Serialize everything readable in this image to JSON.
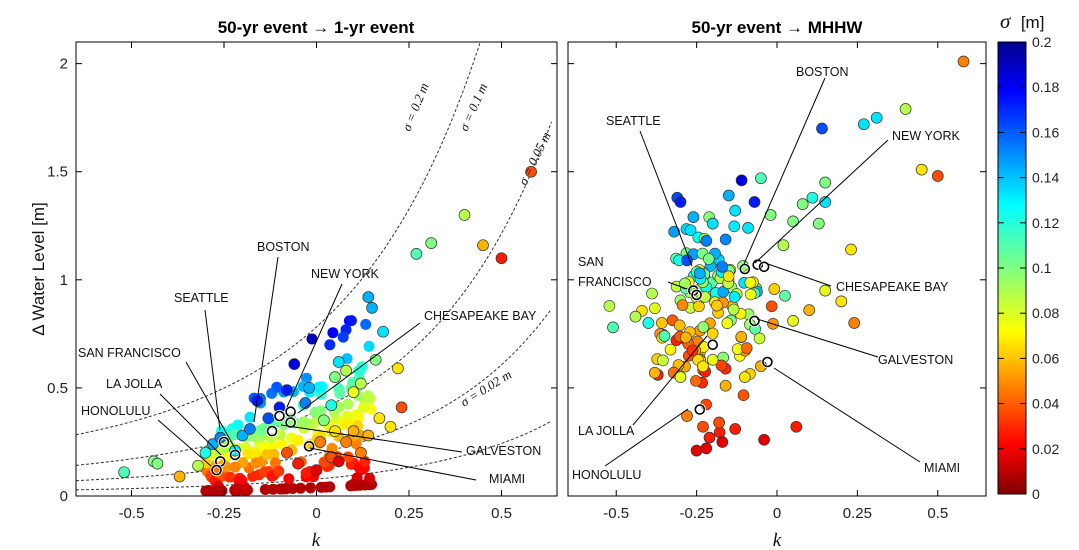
{
  "colors": {
    "frame": "#000000",
    "curve": "#333333",
    "marker_edge": "#333333",
    "city_marker_edge": "#000000"
  },
  "colorbar": {
    "label_symbol": "σ",
    "label_unit": "[m]",
    "min": 0,
    "max": 0.2,
    "ticks": [
      "0.2",
      "0.18",
      "0.16",
      "0.14",
      "0.12",
      "0.1",
      "0.08",
      "0.06",
      "0.04",
      "0.02",
      "0"
    ]
  },
  "chart_data": [
    {
      "type": "scatter",
      "title": "50-yr event → 1-yr event",
      "xlabel": "k",
      "ylabel": "Δ Water Level [m]",
      "xlim": [
        -0.65,
        0.65
      ],
      "ylim": [
        0,
        2.1
      ],
      "xticks": [
        -0.5,
        -0.25,
        0,
        0.25,
        0.5
      ],
      "xtick_labels": [
        "-0.5",
        "-0.25",
        "0",
        "0.25",
        "0.5"
      ],
      "yticks": [
        0.5,
        1,
        1.5,
        2
      ],
      "ytick_labels": [
        "0.5",
        "1",
        "1.5",
        "2"
      ],
      "reference_curves": [
        {
          "sigma": 0.2,
          "label": "σ = 0.2 m"
        },
        {
          "sigma": 0.1,
          "label": "σ = 0.1 m"
        },
        {
          "sigma": 0.05,
          "label": "σ = 0.05 m"
        },
        {
          "sigma": 0.02,
          "label": "σ = 0.02 m"
        }
      ],
      "points": [
        [
          -0.52,
          0.11,
          0.11
        ],
        [
          -0.44,
          0.16,
          0.1
        ],
        [
          -0.43,
          0.15,
          0.1
        ],
        [
          -0.37,
          0.09,
          0.06
        ],
        [
          -0.32,
          0.14,
          0.09
        ],
        [
          -0.3,
          0.2,
          0.12
        ],
        [
          -0.28,
          0.24,
          0.14
        ],
        [
          -0.26,
          0.27,
          0.15
        ],
        [
          -0.22,
          0.21,
          0.13
        ],
        [
          -0.2,
          0.28,
          0.14
        ],
        [
          -0.18,
          0.31,
          0.15
        ],
        [
          -0.16,
          0.44,
          0.17
        ],
        [
          -0.13,
          0.36,
          0.16
        ],
        [
          -0.1,
          0.41,
          0.17
        ],
        [
          -0.08,
          0.49,
          0.17
        ],
        [
          -0.06,
          0.61,
          0.18
        ],
        [
          -0.03,
          0.43,
          0.15
        ],
        [
          -0.02,
          0.5,
          0.14
        ],
        [
          0.02,
          0.35,
          0.1
        ],
        [
          0.04,
          0.42,
          0.12
        ],
        [
          0.05,
          0.55,
          0.1
        ],
        [
          0.06,
          0.62,
          0.13
        ],
        [
          0.08,
          0.58,
          0.09
        ],
        [
          0.1,
          0.48,
          0.08
        ],
        [
          0.12,
          0.52,
          0.09
        ],
        [
          0.14,
          0.92,
          0.14
        ],
        [
          0.15,
          0.87,
          0.14
        ],
        [
          0.16,
          0.63,
          0.1
        ],
        [
          0.18,
          0.76,
          0.13
        ],
        [
          0.22,
          0.59,
          0.07
        ],
        [
          0.23,
          0.41,
          0.04
        ],
        [
          0.27,
          1.12,
          0.11
        ],
        [
          0.31,
          1.17,
          0.1
        ],
        [
          0.4,
          1.3,
          0.09
        ],
        [
          0.45,
          1.16,
          0.06
        ],
        [
          0.5,
          1.1,
          0.03
        ],
        [
          0.58,
          1.5,
          0.04
        ],
        [
          0.2,
          0.32,
          0.07
        ],
        [
          0.17,
          0.36,
          0.07
        ],
        [
          0.1,
          0.3,
          0.06
        ],
        [
          0.05,
          0.3,
          0.07
        ],
        [
          0.08,
          0.25,
          0.05
        ],
        [
          0.04,
          0.18,
          0.04
        ],
        [
          0.0,
          0.12,
          0.02
        ],
        [
          -0.05,
          0.15,
          0.03
        ],
        [
          0.01,
          0.25,
          0.05
        ],
        [
          -0.08,
          0.2,
          0.04
        ],
        [
          0.06,
          0.16,
          0.02
        ],
        [
          0.12,
          0.2,
          0.05
        ],
        [
          0.14,
          0.28,
          0.06
        ]
      ],
      "band_density": 220,
      "cities": [
        {
          "name": "SEATTLE",
          "k": -0.25,
          "y": 0.25
        },
        {
          "name": "SAN FRANCISCO",
          "k": -0.22,
          "y": 0.19
        },
        {
          "name": "LA JOLLA",
          "k": -0.26,
          "y": 0.16
        },
        {
          "name": "HONOLULU",
          "k": -0.27,
          "y": 0.12
        },
        {
          "name": "BOSTON",
          "k": -0.1,
          "y": 0.37
        },
        {
          "name": "NEW YORK",
          "k": -0.07,
          "y": 0.39
        },
        {
          "name": "CHESAPEAKE BAY",
          "k": -0.07,
          "y": 0.34
        },
        {
          "name": "GALVESTON",
          "k": -0.12,
          "y": 0.3
        },
        {
          "name": "MIAMI",
          "k": -0.02,
          "y": 0.23
        }
      ]
    },
    {
      "type": "scatter",
      "title": "50-yr event → MHHW",
      "xlabel": "k",
      "ylabel": "",
      "xlim": [
        -0.65,
        0.65
      ],
      "ylim": [
        0,
        2.1
      ],
      "xticks": [
        -0.5,
        -0.25,
        0,
        0.25,
        0.5
      ],
      "xtick_labels": [
        "-0.5",
        "-0.25",
        "0",
        "0.25",
        "0.5"
      ],
      "yticks": [
        0.5,
        1,
        1.5,
        2
      ],
      "points": [
        [
          -0.51,
          0.78,
          0.11
        ],
        [
          -0.44,
          0.83,
          0.09
        ],
        [
          -0.4,
          0.8,
          0.12
        ],
        [
          -0.38,
          0.57,
          0.06
        ],
        [
          -0.35,
          0.74,
          0.11
        ],
        [
          -0.31,
          1.38,
          0.16
        ],
        [
          -0.3,
          1.36,
          0.17
        ],
        [
          -0.28,
          1.09,
          0.16
        ],
        [
          -0.26,
          1.29,
          0.14
        ],
        [
          -0.24,
          1.03,
          0.14
        ],
        [
          -0.22,
          1.18,
          0.15
        ],
        [
          -0.2,
          1.26,
          0.13
        ],
        [
          -0.17,
          1.06,
          0.15
        ],
        [
          -0.15,
          1.39,
          0.14
        ],
        [
          -0.13,
          1.32,
          0.13
        ],
        [
          -0.11,
          1.46,
          0.18
        ],
        [
          -0.09,
          1.24,
          0.13
        ],
        [
          -0.07,
          1.36,
          0.17
        ],
        [
          -0.05,
          1.47,
          0.11
        ],
        [
          -0.02,
          1.3,
          0.1
        ],
        [
          0.02,
          1.16,
          0.09
        ],
        [
          0.05,
          1.27,
          0.1
        ],
        [
          0.08,
          1.35,
          0.1
        ],
        [
          0.11,
          1.38,
          0.12
        ],
        [
          0.13,
          1.26,
          0.1
        ],
        [
          0.15,
          1.36,
          0.13
        ],
        [
          0.14,
          1.7,
          0.16
        ],
        [
          0.15,
          1.45,
          0.1
        ],
        [
          0.23,
          1.14,
          0.07
        ],
        [
          0.27,
          1.72,
          0.13
        ],
        [
          0.31,
          1.75,
          0.13
        ],
        [
          0.4,
          1.79,
          0.09
        ],
        [
          0.45,
          1.51,
          0.07
        ],
        [
          0.5,
          1.48,
          0.04
        ],
        [
          0.58,
          2.01,
          0.05
        ],
        [
          0.24,
          0.8,
          0.05
        ],
        [
          0.2,
          0.9,
          0.07
        ],
        [
          0.15,
          0.95,
          0.08
        ],
        [
          0.1,
          0.86,
          0.06
        ],
        [
          0.05,
          0.81,
          0.08
        ],
        [
          -0.23,
          0.32,
          0.04
        ],
        [
          -0.21,
          0.27,
          0.03
        ],
        [
          -0.18,
          0.34,
          0.04
        ],
        [
          -0.13,
          0.31,
          0.03
        ],
        [
          -0.04,
          0.26,
          0.02
        ],
        [
          0.06,
          0.32,
          0.03
        ],
        [
          -0.25,
          0.21,
          0.02
        ],
        [
          -0.22,
          0.22,
          0.02
        ],
        [
          -0.17,
          0.25,
          0.02
        ],
        [
          -0.28,
          0.37,
          0.05
        ],
        [
          -0.3,
          0.55,
          0.08
        ],
        [
          -0.23,
          0.6,
          0.07
        ],
        [
          -0.2,
          0.63,
          0.08
        ],
        [
          -0.16,
          0.51,
          0.06
        ],
        [
          -0.1,
          0.55,
          0.07
        ],
        [
          -0.05,
          0.6,
          0.06
        ]
      ],
      "cloud_density": 140,
      "cities": [
        {
          "name": "BOSTON",
          "k": -0.1,
          "y": 1.05
        },
        {
          "name": "NEW YORK",
          "k": -0.06,
          "y": 1.07
        },
        {
          "name": "CHESAPEAKE BAY",
          "k": -0.04,
          "y": 1.06
        },
        {
          "name": "SEATTLE",
          "k": -0.26,
          "y": 0.95
        },
        {
          "name": "SAN FRANCISCO",
          "k": -0.25,
          "y": 0.93
        },
        {
          "name": "GALVESTON",
          "k": -0.07,
          "y": 0.81
        },
        {
          "name": "MIAMI",
          "k": -0.03,
          "y": 0.62
        },
        {
          "name": "LA JOLLA",
          "k": -0.2,
          "y": 0.7
        },
        {
          "name": "HONOLULU",
          "k": -0.24,
          "y": 0.4
        }
      ]
    }
  ],
  "left_labels": {
    "boston": "BOSTON",
    "new_york": "NEW YORK",
    "seattle": "SEATTLE",
    "chesapeake": "CHESAPEAKE BAY",
    "san_francisco": "SAN FRANCISCO",
    "la_jolla": "LA JOLLA",
    "honolulu": "HONOLULU",
    "galveston": "GALVESTON",
    "miami": "MIAMI"
  },
  "right_labels": {
    "boston": "BOSTON",
    "new_york": "NEW YORK",
    "seattle": "SEATTLE",
    "chesapeake": "CHESAPEAKE BAY",
    "san": "SAN",
    "francisco": "FRANCISCO",
    "la_jolla": "LA JOLLA",
    "honolulu": "HONOLULU",
    "galveston": "GALVESTON",
    "miami": "MIAMI"
  }
}
